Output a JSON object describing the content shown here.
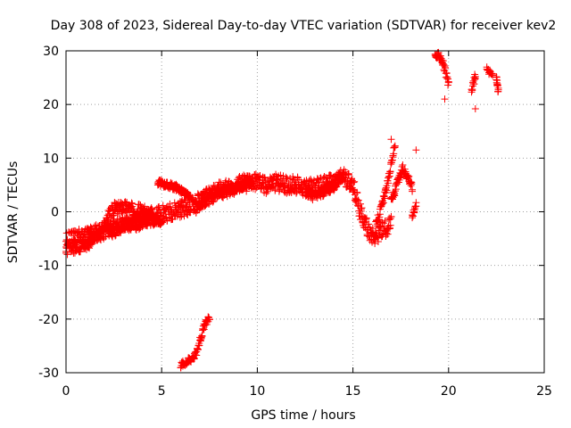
{
  "colors": {
    "background": "#ffffff",
    "axis": "#000000",
    "grid": "#a0a0a0",
    "series": "#ff0000"
  },
  "chart_data": {
    "type": "scatter",
    "title": "Day 308 of 2023, Sidereal Day-to-day VTEC variation (SDTVAR) for receiver kev2",
    "xlabel": "GPS time / hours",
    "ylabel": "SDTVAR / TECUs",
    "xlim": [
      0,
      25
    ],
    "ylim": [
      -30,
      30
    ],
    "grid": true,
    "marker": "+",
    "xticks": [
      0,
      5,
      10,
      15,
      20,
      25
    ],
    "yticks": [
      -30,
      -20,
      -10,
      0,
      10,
      20,
      30
    ],
    "series": [
      {
        "name": "kev2 SDTVAR",
        "color": "#ff0000",
        "bands": [
          {
            "x": [
              0.0,
              0.5,
              1.0,
              1.5,
              2.0,
              2.5,
              3.0,
              3.5,
              4.0,
              4.5,
              5.0,
              5.5,
              6.0,
              6.5,
              7.0,
              7.5,
              8.0,
              8.5,
              9.0,
              9.5,
              10.0,
              10.5,
              11.0,
              11.5,
              12.0,
              12.5,
              13.0,
              13.5,
              14.0,
              14.5,
              15.0,
              15.3,
              15.6,
              15.9,
              16.2,
              16.5,
              16.8,
              17.0
            ],
            "y": [
              -5.5,
              -5.0,
              -4.5,
              -4.0,
              -3.5,
              -3.0,
              -2.5,
              -2.0,
              -1.5,
              -1.0,
              -0.5,
              0.0,
              0.5,
              1.0,
              2.0,
              3.0,
              4.0,
              4.5,
              5.0,
              5.5,
              5.5,
              5.0,
              5.5,
              5.0,
              5.0,
              4.5,
              4.5,
              5.0,
              5.5,
              6.5,
              5.0,
              1.0,
              -2.0,
              -4.0,
              -4.5,
              -3.5,
              -3.0,
              -2.5
            ],
            "spread": 1.6
          },
          {
            "x": [
              0.0,
              0.5,
              1.0,
              1.5,
              2.0,
              2.2,
              2.5,
              3.0,
              3.5,
              4.0,
              4.5
            ],
            "y": [
              -7.0,
              -6.5,
              -6.0,
              -5.0,
              -3.0,
              -1.0,
              0.5,
              1.0,
              0.5,
              0.0,
              -0.5
            ],
            "spread": 1.2
          },
          {
            "x": [
              2.2,
              2.6,
              3.0,
              3.5,
              4.0,
              4.5,
              5.0
            ],
            "y": [
              -3.5,
              -3.0,
              -2.5,
              -2.0,
              -2.0,
              -1.5,
              -1.5
            ],
            "spread": 1.0
          },
          {
            "x": [
              4.8,
              5.3,
              5.8,
              6.2,
              6.5
            ],
            "y": [
              5.5,
              5.0,
              4.5,
              3.5,
              2.5
            ],
            "spread": 0.6
          },
          {
            "x": [
              6.8,
              7.3,
              7.8,
              8.3,
              8.8,
              9.3,
              9.8
            ],
            "y": [
              0.5,
              2.0,
              3.5,
              4.0,
              4.5,
              5.0,
              5.5
            ],
            "spread": 0.8
          },
          {
            "x": [
              12.5,
              13.0,
              13.5,
              14.0,
              14.5
            ],
            "y": [
              4.0,
              3.0,
              4.0,
              5.0,
              7.0
            ],
            "spread": 1.0
          },
          {
            "x": [
              16.2,
              16.5,
              16.8,
              17.0,
              17.2
            ],
            "y": [
              -2.5,
              1.0,
              5.0,
              9.0,
              12.5
            ],
            "spread": 0.7
          },
          {
            "x": [
              17.0,
              17.3,
              17.6,
              17.9,
              18.1
            ],
            "y": [
              2.0,
              5.0,
              8.0,
              6.5,
              4.5
            ],
            "spread": 0.8
          },
          {
            "x": [
              18.1,
              18.3
            ],
            "y": [
              -1.0,
              1.5
            ],
            "spread": 0.5
          },
          {
            "x": [
              6.0,
              6.5,
              6.8,
              7.0,
              7.2,
              7.5
            ],
            "y": [
              -28.5,
              -27.5,
              -26.5,
              -24.0,
              -21.5,
              -19.5
            ],
            "spread": 0.6
          },
          {
            "x": [
              19.3,
              19.6,
              19.8,
              20.0
            ],
            "y": [
              29.0,
              29.0,
              26.5,
              23.5
            ],
            "spread": 0.8
          },
          {
            "x": [
              21.2,
              21.4
            ],
            "y": [
              22.5,
              25.5
            ],
            "spread": 0.8
          },
          {
            "x": [
              22.0,
              22.3
            ],
            "y": [
              26.5,
              25.5
            ],
            "spread": 0.5
          },
          {
            "x": [
              22.5,
              22.6
            ],
            "y": [
              25.0,
              22.5
            ],
            "spread": 0.6
          }
        ],
        "points": [
          {
            "x": 18.3,
            "y": 11.5
          },
          {
            "x": 19.8,
            "y": 21.0
          },
          {
            "x": 21.4,
            "y": 19.2
          },
          {
            "x": 17.0,
            "y": 13.5
          }
        ]
      }
    ]
  }
}
